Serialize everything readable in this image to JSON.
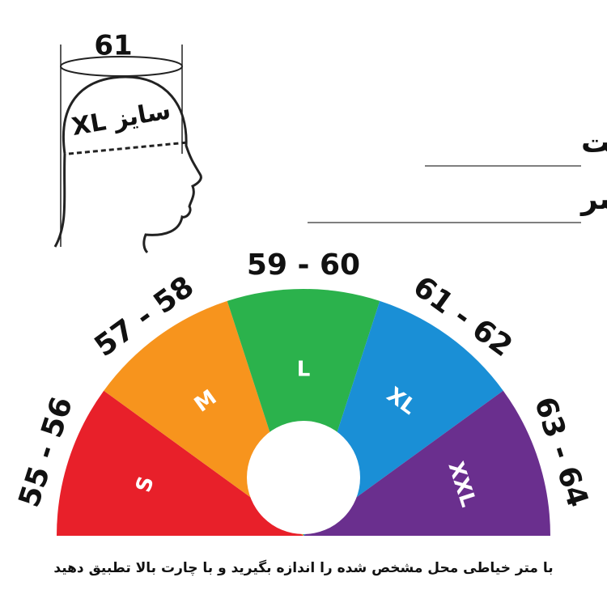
{
  "head_illustration": {
    "circumference": "61",
    "size_label": "سایز XL"
  },
  "title": {
    "line1": "محل درست",
    "line2": "اندازه گیری سایز سر"
  },
  "segments": [
    {
      "size": "S",
      "range": "55 - 56",
      "color": "#e8202a"
    },
    {
      "size": "M",
      "range": "57 - 58",
      "color": "#f7941d"
    },
    {
      "size": "L",
      "range": "59 - 60",
      "color": "#2bb24c"
    },
    {
      "size": "XL",
      "range": "61 - 62",
      "color": "#1a8fd6"
    },
    {
      "size": "XXL",
      "range": "63 - 64",
      "color": "#6a2f8e"
    }
  ],
  "footer": "با متر خیاطی محل مشخص شده را اندازه بگیرید و با چارت بالا تطبیق دهید"
}
